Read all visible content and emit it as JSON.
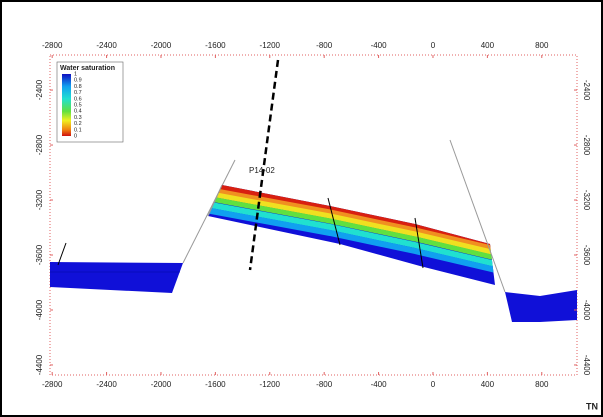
{
  "chart_data": {
    "type": "cross-section",
    "well_label": "P14-02",
    "corner_label": "TN",
    "legend": {
      "title": "Water saturation",
      "labels": [
        "1",
        "0.9",
        "0.8",
        "0.7",
        "0.6",
        "0.5",
        "0.4",
        "0.3",
        "0.2",
        "0.1",
        "0"
      ]
    },
    "xlim": [
      -2816,
      1059
    ],
    "xticks": [
      -2800,
      -2400,
      -2000,
      -1600,
      -1200,
      -800,
      -400,
      0,
      400,
      800
    ],
    "ylim": [
      -4473,
      -2145
    ],
    "yticks": [
      -2400,
      -2800,
      -3200,
      -3600,
      -4000,
      -4400
    ]
  }
}
